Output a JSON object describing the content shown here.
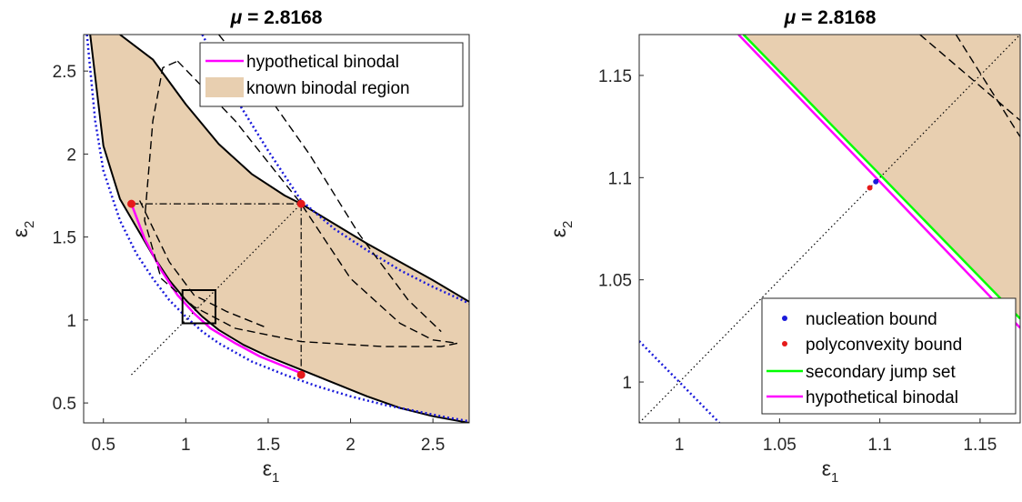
{
  "chart_data": [
    {
      "type": "line",
      "title_prefix": "μ",
      "title_value": "= 2.8168",
      "xlabel": "ε",
      "xlabel_sub": "1",
      "ylabel": "ε",
      "ylabel_sub": "2",
      "xlim": [
        0.38,
        2.72
      ],
      "ylim": [
        0.38,
        2.72
      ],
      "xticks": [
        "0.5",
        "1",
        "1.5",
        "2",
        "2.5"
      ],
      "xtick_values": [
        0.5,
        1,
        1.5,
        2,
        2.5
      ],
      "yticks": [
        "0.5",
        "1",
        "1.5",
        "2",
        "2.5"
      ],
      "ytick_values": [
        0.5,
        1,
        1.5,
        2,
        2.5
      ],
      "legend_position": "top-right",
      "legend": [
        {
          "label": "hypothetical binodal",
          "color": "#ff00ff",
          "kind": "line"
        },
        {
          "label": "known binodal region",
          "color": "#e8cfb0",
          "kind": "patch"
        }
      ],
      "series": [
        {
          "name": "known binodal region",
          "kind": "fill",
          "color": "#e8cfb0",
          "lower_curve": [
            [
              0.42,
              2.72
            ],
            [
              0.5,
              2.05
            ],
            [
              0.6,
              1.73
            ],
            [
              0.7,
              1.56
            ],
            [
              0.8,
              1.39
            ],
            [
              0.9,
              1.24
            ],
            [
              1.0,
              1.12
            ],
            [
              1.1,
              1.02
            ],
            [
              1.2,
              0.94
            ],
            [
              1.35,
              0.85
            ],
            [
              1.5,
              0.78
            ],
            [
              1.7,
              0.7
            ],
            [
              1.9,
              0.62
            ],
            [
              2.1,
              0.54
            ],
            [
              2.3,
              0.47
            ],
            [
              2.5,
              0.42
            ],
            [
              2.72,
              0.38
            ]
          ],
          "upper_curve": [
            [
              0.6,
              2.72
            ],
            [
              0.8,
              2.57
            ],
            [
              1.0,
              2.3
            ],
            [
              1.2,
              2.06
            ],
            [
              1.4,
              1.88
            ],
            [
              1.6,
              1.75
            ],
            [
              1.7,
              1.7
            ],
            [
              1.9,
              1.58
            ],
            [
              2.1,
              1.46
            ],
            [
              2.3,
              1.35
            ],
            [
              2.5,
              1.24
            ],
            [
              2.72,
              1.11
            ]
          ]
        },
        {
          "name": "",
          "kind": "line",
          "color": "#000000",
          "dash": "",
          "width": 2,
          "points": [
            [
              0.42,
              2.72
            ],
            [
              0.5,
              2.05
            ],
            [
              0.6,
              1.73
            ],
            [
              0.7,
              1.56
            ],
            [
              0.8,
              1.39
            ],
            [
              0.9,
              1.24
            ],
            [
              1.0,
              1.12
            ],
            [
              1.1,
              1.02
            ],
            [
              1.2,
              0.94
            ],
            [
              1.35,
              0.85
            ],
            [
              1.5,
              0.78
            ],
            [
              1.7,
              0.7
            ],
            [
              1.9,
              0.62
            ],
            [
              2.1,
              0.54
            ],
            [
              2.3,
              0.47
            ],
            [
              2.5,
              0.42
            ],
            [
              2.72,
              0.38
            ]
          ]
        },
        {
          "name": "",
          "kind": "line",
          "color": "#000000",
          "dash": "",
          "width": 2,
          "points": [
            [
              0.6,
              2.72
            ],
            [
              0.8,
              2.57
            ],
            [
              1.0,
              2.3
            ],
            [
              1.2,
              2.06
            ],
            [
              1.4,
              1.88
            ],
            [
              1.6,
              1.75
            ],
            [
              1.7,
              1.7
            ],
            [
              1.9,
              1.58
            ],
            [
              2.1,
              1.46
            ],
            [
              2.3,
              1.35
            ],
            [
              2.5,
              1.24
            ],
            [
              2.72,
              1.11
            ]
          ]
        },
        {
          "name": "",
          "kind": "line",
          "color": "#1a1adb",
          "dash": "2,3",
          "width": 2.5,
          "points": [
            [
              0.4,
              2.72
            ],
            [
              0.45,
              2.2
            ],
            [
              0.5,
              1.9
            ],
            [
              0.6,
              1.6
            ],
            [
              0.7,
              1.4
            ],
            [
              0.8,
              1.25
            ],
            [
              0.9,
              1.12
            ],
            [
              1.0,
              1.02
            ],
            [
              1.1,
              0.93
            ],
            [
              1.2,
              0.86
            ],
            [
              1.4,
              0.75
            ],
            [
              1.6,
              0.67
            ],
            [
              1.8,
              0.6
            ],
            [
              2.0,
              0.54
            ],
            [
              2.2,
              0.49
            ],
            [
              2.4,
              0.45
            ],
            [
              2.6,
              0.41
            ],
            [
              2.72,
              0.39
            ]
          ]
        },
        {
          "name": "",
          "kind": "line",
          "color": "#1a1adb",
          "dash": "2,3",
          "width": 2.5,
          "points": [
            [
              1.1,
              2.72
            ],
            [
              1.3,
              2.34
            ],
            [
              1.5,
              2.02
            ],
            [
              1.7,
              1.72
            ],
            [
              1.9,
              1.55
            ],
            [
              2.1,
              1.42
            ],
            [
              2.3,
              1.3
            ],
            [
              2.5,
              1.2
            ],
            [
              2.72,
              1.1
            ]
          ]
        },
        {
          "name": "hypothetical binodal",
          "kind": "line",
          "color": "#ff00ff",
          "dash": "",
          "width": 2.5,
          "points": [
            [
              0.67,
              1.7
            ],
            [
              0.75,
              1.49
            ],
            [
              0.85,
              1.3
            ],
            [
              0.95,
              1.15
            ],
            [
              1.05,
              1.04
            ],
            [
              1.15,
              0.95
            ],
            [
              1.3,
              0.86
            ],
            [
              1.45,
              0.78
            ],
            [
              1.6,
              0.72
            ],
            [
              1.7,
              0.68
            ]
          ]
        },
        {
          "name": "",
          "kind": "line",
          "color": "#000000",
          "dash": "9,5",
          "width": 1.4,
          "points": [
            [
              0.95,
              2.56
            ],
            [
              1.3,
              2.2
            ],
            [
              1.7,
              1.7
            ],
            [
              2.0,
              1.25
            ],
            [
              2.3,
              0.98
            ],
            [
              2.5,
              0.88
            ],
            [
              2.65,
              0.86
            ],
            [
              2.55,
              0.84
            ],
            [
              2.2,
              0.84
            ],
            [
              1.7,
              0.87
            ],
            [
              1.3,
              0.95
            ],
            [
              1.05,
              1.08
            ],
            [
              0.85,
              1.25
            ],
            [
              0.75,
              1.6
            ],
            [
              0.8,
              2.2
            ],
            [
              0.86,
              2.52
            ],
            [
              0.95,
              2.56
            ]
          ]
        },
        {
          "name": "",
          "kind": "line",
          "color": "#000000",
          "dash": "9,5",
          "width": 1.4,
          "points": [
            [
              1.2,
              2.72
            ],
            [
              1.5,
              2.35
            ],
            [
              1.75,
              2.0
            ],
            [
              2.05,
              1.52
            ],
            [
              2.35,
              1.12
            ],
            [
              2.55,
              0.93
            ]
          ]
        },
        {
          "name": "",
          "kind": "line",
          "color": "#000000",
          "dash": "9,5",
          "width": 1.4,
          "points": [
            [
              0.72,
              1.72
            ],
            [
              0.9,
              1.35
            ],
            [
              1.05,
              1.15
            ],
            [
              1.25,
              1.05
            ],
            [
              1.5,
              0.95
            ]
          ]
        },
        {
          "name": "",
          "kind": "line",
          "color": "#000000",
          "dash": "1.5,3",
          "width": 1.2,
          "points": [
            [
              0.67,
              0.67
            ],
            [
              1.7,
              1.7
            ]
          ]
        },
        {
          "name": "",
          "kind": "line",
          "color": "#000000",
          "dash": "8,3,1.5,3",
          "width": 1.2,
          "points": [
            [
              0.67,
              1.7
            ],
            [
              1.7,
              1.7
            ]
          ]
        },
        {
          "name": "",
          "kind": "line",
          "color": "#000000",
          "dash": "8,3,1.5,3",
          "width": 1.2,
          "points": [
            [
              1.7,
              1.7
            ],
            [
              1.7,
              0.67
            ]
          ]
        },
        {
          "name": "",
          "kind": "markers",
          "color": "#e51a1a",
          "points": [
            [
              0.67,
              1.7
            ],
            [
              1.7,
              1.7
            ],
            [
              1.7,
              0.67
            ]
          ]
        }
      ],
      "zoom_box": {
        "x": [
          0.98,
          1.18
        ],
        "y": [
          0.98,
          1.18
        ]
      }
    },
    {
      "type": "line",
      "title_prefix": "μ",
      "title_value": "= 2.8168",
      "xlabel": "ε",
      "xlabel_sub": "1",
      "ylabel": "ε",
      "ylabel_sub": "2",
      "xlim": [
        0.98,
        1.17
      ],
      "ylim": [
        0.98,
        1.17
      ],
      "xticks": [
        "1",
        "1.05",
        "1.1",
        "1.15"
      ],
      "xtick_values": [
        1,
        1.05,
        1.1,
        1.15
      ],
      "yticks": [
        "1",
        "1.05",
        "1.1",
        "1.15"
      ],
      "ytick_values": [
        1,
        1.05,
        1.1,
        1.15
      ],
      "legend_position": "bottom-right",
      "legend": [
        {
          "label": "nucleation bound",
          "color": "#1a1adb",
          "kind": "dot"
        },
        {
          "label": "polyconvexity bound",
          "color": "#e51a1a",
          "kind": "dot"
        },
        {
          "label": "secondary jump set",
          "color": "#00ff00",
          "kind": "line"
        },
        {
          "label": "hypothetical binodal",
          "color": "#ff00ff",
          "kind": "line"
        }
      ],
      "series": [
        {
          "name": "known binodal region",
          "kind": "polygon",
          "color": "#e8cfb0",
          "points": [
            [
              1.032,
              1.17
            ],
            [
              1.17,
              1.17
            ],
            [
              1.17,
              1.031
            ]
          ]
        },
        {
          "name": "secondary jump set",
          "kind": "line",
          "color": "#00ff00",
          "dash": "",
          "width": 2.5,
          "points": [
            [
              1.032,
              1.17
            ],
            [
              1.17,
              1.031
            ]
          ]
        },
        {
          "name": "hypothetical binodal",
          "kind": "line",
          "color": "#ff00ff",
          "dash": "",
          "width": 2.5,
          "points": [
            [
              1.0295,
              1.17
            ],
            [
              1.17,
              1.0265
            ]
          ]
        },
        {
          "name": "",
          "kind": "line",
          "color": "#1a1adb",
          "dash": "2,3",
          "width": 2.5,
          "points": [
            [
              0.98,
              1.02
            ],
            [
              1.02,
              0.98
            ]
          ]
        },
        {
          "name": "",
          "kind": "line",
          "color": "#000000",
          "dash": "1.5,3",
          "width": 1.2,
          "points": [
            [
              0.98,
              0.98
            ],
            [
              1.17,
              1.17
            ]
          ]
        },
        {
          "name": "",
          "kind": "line",
          "color": "#000000",
          "dash": "9,5",
          "width": 1.4,
          "points": [
            [
              1.12,
              1.17
            ],
            [
              1.17,
              1.128
            ]
          ]
        },
        {
          "name": "",
          "kind": "line",
          "color": "#000000",
          "dash": "9,5",
          "width": 1.4,
          "points": [
            [
              1.138,
              1.17
            ],
            [
              1.17,
              1.12
            ]
          ]
        },
        {
          "name": "nucleation bound",
          "kind": "markers",
          "color": "#1a1adb",
          "size": 3,
          "points": [
            [
              1.098,
              1.098
            ]
          ]
        },
        {
          "name": "polyconvexity bound",
          "kind": "markers",
          "color": "#e51a1a",
          "size": 3,
          "points": [
            [
              1.095,
              1.095
            ]
          ]
        }
      ]
    }
  ]
}
